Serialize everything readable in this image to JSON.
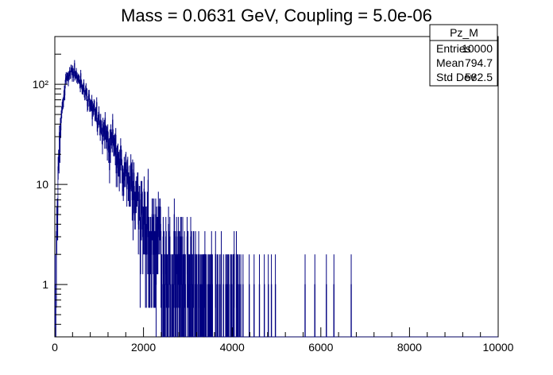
{
  "chart_data": {
    "type": "histogram",
    "title": "Mass = 0.0631 GeV, Coupling = 5.0e-06",
    "xlabel": "",
    "ylabel": "",
    "xlim": [
      0,
      10000
    ],
    "ylim": [
      0.3,
      300
    ],
    "yscale": "log",
    "grid": false,
    "x_ticks": [
      0,
      2000,
      4000,
      6000,
      8000,
      10000
    ],
    "x_tick_labels": [
      "0",
      "2000",
      "4000",
      "6000",
      "8000",
      "10000"
    ],
    "y_ticks": [
      1,
      10,
      100
    ],
    "y_tick_labels": [
      "1",
      "10",
      "10²"
    ],
    "bin_width": 10,
    "line_color": "#000080",
    "series": [
      {
        "profile": [
          [
            10,
            0.3
          ],
          [
            40,
            3
          ],
          [
            80,
            12
          ],
          [
            120,
            35
          ],
          [
            180,
            70
          ],
          [
            250,
            110
          ],
          [
            320,
            128
          ],
          [
            400,
            132
          ],
          [
            500,
            120
          ],
          [
            600,
            100
          ],
          [
            700,
            82
          ],
          [
            800,
            66
          ],
          [
            900,
            52
          ],
          [
            1000,
            44
          ],
          [
            1100,
            36
          ],
          [
            1200,
            30
          ],
          [
            1300,
            25
          ],
          [
            1400,
            20
          ],
          [
            1500,
            16
          ],
          [
            1600,
            13
          ],
          [
            1700,
            11
          ],
          [
            1800,
            9
          ],
          [
            1900,
            7
          ],
          [
            2000,
            5.5
          ],
          [
            2100,
            4.5
          ],
          [
            2200,
            3.6
          ],
          [
            2300,
            2.8
          ],
          [
            2400,
            2.3
          ],
          [
            2500,
            1.9
          ],
          [
            2700,
            1.5
          ],
          [
            2900,
            1.1
          ],
          [
            3100,
            0.9
          ],
          [
            3400,
            0.75
          ],
          [
            3800,
            0.55
          ],
          [
            4200,
            0.4
          ],
          [
            4700,
            0.3
          ],
          [
            5000,
            0.2
          ]
        ],
        "isolated_ones": [
          4240,
          4380,
          4490,
          4610,
          4720,
          4810,
          4880,
          4970,
          5640,
          5860,
          6120,
          6290,
          6680
        ]
      }
    ]
  },
  "stats_box": {
    "name": "Pz_M",
    "rows": [
      {
        "label": "Entries",
        "value": "10000"
      },
      {
        "label": "Mean",
        "value": "794.7"
      },
      {
        "label": "Std Dev",
        "value": "582.5"
      }
    ]
  }
}
